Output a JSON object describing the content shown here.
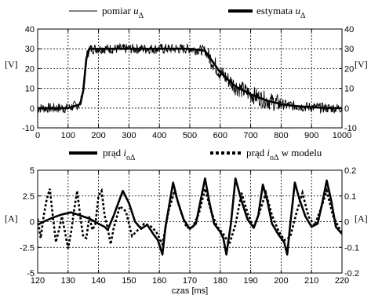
{
  "chart_data": [
    {
      "type": "line",
      "id": "top",
      "legend": [
        {
          "style": "thin",
          "text": "pomiar ",
          "var": "u",
          "sub": "Δ"
        },
        {
          "style": "thick",
          "text": "estymata ",
          "var": "u",
          "sub": "Δ"
        }
      ],
      "xlim": [
        0,
        1000
      ],
      "ylim": [
        -10,
        40
      ],
      "xticks": [
        "0",
        "100",
        "200",
        "300",
        "400",
        "500",
        "600",
        "700",
        "800",
        "900",
        "1000"
      ],
      "yticks": [
        "-10",
        "0",
        "10",
        "20",
        "30",
        "40"
      ],
      "yticks_right": [
        "-10",
        "0",
        "10",
        "20",
        "30",
        "40"
      ],
      "ylabel": "[V]",
      "ylabel_right": "[V]",
      "grid": true,
      "series": [
        {
          "style": "thin",
          "x": [
            0,
            50,
            100,
            140,
            150,
            160,
            170,
            200,
            300,
            400,
            500,
            550,
            600,
            650,
            700,
            750,
            800,
            850,
            900,
            950,
            1000
          ],
          "y": [
            0,
            0,
            0,
            2,
            10,
            26,
            30,
            30,
            30,
            30,
            30,
            29,
            18,
            11,
            7,
            4,
            2,
            1,
            0.5,
            0,
            0
          ]
        },
        {
          "style": "thick",
          "x": [
            0,
            50,
            100,
            140,
            150,
            160,
            170,
            200,
            300,
            400,
            500,
            550,
            600,
            650,
            700,
            750,
            800,
            850,
            900,
            950,
            1000
          ],
          "y": [
            0,
            0,
            0,
            2,
            9,
            25,
            30,
            30,
            30,
            30,
            30,
            29,
            18,
            11,
            7,
            4,
            2,
            1,
            0.5,
            0,
            0
          ]
        }
      ]
    },
    {
      "type": "line",
      "id": "bottom",
      "legend": [
        {
          "style": "thick",
          "text": "prąd ",
          "var": "i",
          "sub": "oΔ",
          "after": ""
        },
        {
          "style": "dotted",
          "text": "prąd ",
          "var": "i",
          "sub": "oΔ",
          "after": " w modelu"
        }
      ],
      "xlim": [
        120,
        220
      ],
      "ylim": [
        -5,
        5
      ],
      "ylim_right": [
        -0.2,
        0.2
      ],
      "xticks": [
        "120",
        "130",
        "140",
        "150",
        "160",
        "170",
        "180",
        "190",
        "200",
        "210",
        "220"
      ],
      "yticks": [
        "-5",
        "-2.5",
        "0",
        "2.5",
        "5"
      ],
      "yticks_right": [
        "-0.2",
        "-0.1",
        "0",
        "0.1",
        "0.2"
      ],
      "ylabel": "[A]",
      "ylabel_right": "[A]",
      "xlabel": "czas [ms]",
      "grid": true,
      "series": [
        {
          "style": "thick",
          "x": [
            120,
            122,
            125,
            128,
            131,
            134,
            137,
            140,
            142,
            143,
            145,
            148,
            150,
            152,
            154,
            156,
            158,
            159.5,
            161,
            162,
            163,
            164.5,
            166,
            168,
            170,
            172,
            173.5,
            175,
            176.5,
            178,
            180,
            181,
            182,
            183.5,
            185,
            187,
            189,
            191,
            192.5,
            194,
            195.5,
            197,
            199,
            201,
            202,
            203,
            204.5,
            206,
            208,
            210,
            212,
            213.5,
            215,
            216.5,
            218,
            220
          ],
          "y": [
            -0.3,
            0,
            0.4,
            0.7,
            0.9,
            0.6,
            0.3,
            -0.2,
            -0.5,
            -0.8,
            0.6,
            3.0,
            1.8,
            0,
            -0.7,
            -0.3,
            -1.2,
            -1.8,
            -3.2,
            -0.5,
            1.2,
            3.8,
            2.0,
            0.2,
            -0.7,
            -0.2,
            2.0,
            4.2,
            1.8,
            -0.2,
            -1.0,
            -1.6,
            -3.2,
            -0.2,
            4.2,
            2.0,
            0.2,
            -0.6,
            0.6,
            3.6,
            2.0,
            -0.2,
            -1.2,
            -2.0,
            -3.2,
            -0.3,
            3.8,
            2.2,
            0.5,
            -0.5,
            -0.2,
            1.8,
            4.0,
            2.0,
            -0.5,
            -1.2
          ]
        },
        {
          "style": "dotted",
          "x": [
            120,
            121,
            122,
            123,
            124,
            125,
            126,
            127,
            128,
            130,
            131,
            132,
            133,
            134,
            135,
            136,
            137,
            138,
            139,
            140,
            141,
            142,
            143,
            144,
            145,
            147,
            149,
            150,
            151,
            153,
            155,
            157,
            159,
            161,
            163,
            165,
            167,
            169,
            171,
            173,
            175,
            177,
            179,
            181,
            183,
            185,
            187,
            189,
            191,
            193,
            195,
            197,
            199,
            201,
            203,
            205,
            207,
            209,
            211,
            213,
            215,
            217,
            219,
            220
          ],
          "y": [
            0.3,
            -1.6,
            0.6,
            2.2,
            3.2,
            0.5,
            -2.0,
            -0.8,
            0.5,
            -2.6,
            -1.0,
            1.2,
            3.0,
            0.5,
            -1.5,
            -1.6,
            0.5,
            -0.8,
            -0.2,
            2.5,
            3.0,
            0.6,
            -0.6,
            -2.2,
            -0.6,
            1.5,
            1.0,
            -0.2,
            -1.4,
            -0.8,
            -0.2,
            -0.4,
            -1.0,
            -2.2,
            1.0,
            3.0,
            1.0,
            -0.6,
            -0.5,
            0.8,
            3.2,
            1.0,
            -0.5,
            -1.2,
            -2.2,
            -0.3,
            2.8,
            0.8,
            -0.6,
            1.0,
            2.8,
            0.6,
            -0.8,
            -1.8,
            -1.5,
            0.8,
            2.8,
            0.5,
            -0.4,
            1.2,
            3.0,
            0.6,
            -0.6,
            -1.0
          ]
        }
      ]
    }
  ]
}
